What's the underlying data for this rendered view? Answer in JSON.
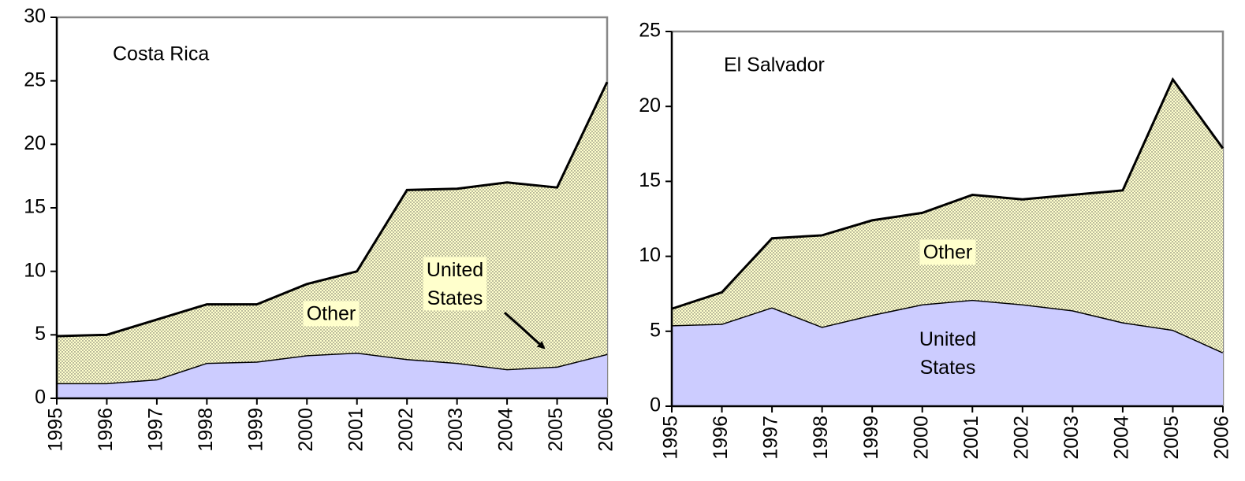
{
  "chart_data": [
    {
      "type": "area",
      "stacked": true,
      "title": "Costa Rica",
      "categories": [
        "1995",
        "1996",
        "1997",
        "1998",
        "1999",
        "2000",
        "2001",
        "2002",
        "2003",
        "2004",
        "2005",
        "2006"
      ],
      "series": [
        {
          "name": "United States",
          "color": "#ccccff",
          "values": [
            1.2,
            1.2,
            1.5,
            2.8,
            2.9,
            3.4,
            3.6,
            3.1,
            2.8,
            2.3,
            2.5,
            3.5
          ]
        },
        {
          "name": "Other",
          "color": "#ffffcc",
          "hatch": "dotted",
          "values": [
            3.7,
            3.8,
            4.7,
            4.6,
            4.5,
            5.6,
            6.4,
            13.3,
            13.7,
            14.7,
            14.1,
            21.4
          ]
        }
      ],
      "ylim": [
        0,
        30
      ],
      "yticks": [
        0,
        5,
        10,
        15,
        20,
        25,
        30
      ]
    },
    {
      "type": "area",
      "stacked": true,
      "title": "El Salvador",
      "categories": [
        "1995",
        "1996",
        "1997",
        "1998",
        "1999",
        "2000",
        "2001",
        "2002",
        "2003",
        "2004",
        "2005",
        "2006"
      ],
      "series": [
        {
          "name": "United States",
          "color": "#ccccff",
          "values": [
            5.4,
            5.5,
            6.6,
            5.3,
            6.1,
            6.8,
            7.1,
            6.8,
            6.4,
            5.6,
            5.1,
            3.6
          ]
        },
        {
          "name": "Other",
          "color": "#ffffcc",
          "hatch": "dotted",
          "values": [
            1.1,
            2.1,
            4.6,
            6.1,
            6.3,
            6.1,
            7.0,
            7.0,
            7.7,
            8.8,
            16.7,
            13.6
          ]
        }
      ],
      "ylim": [
        0,
        25
      ],
      "yticks": [
        0,
        5,
        10,
        15,
        20,
        25
      ]
    }
  ]
}
